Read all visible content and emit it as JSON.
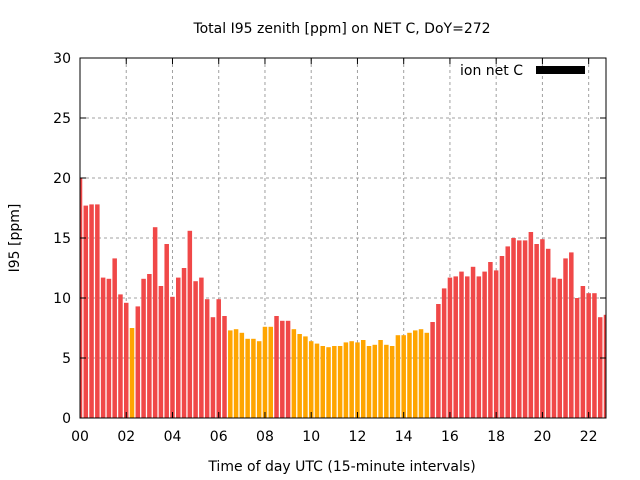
{
  "chart_data": {
    "type": "bar",
    "title": "Total I95 zenith [ppm] on NET C, DoY=272",
    "xlabel": "Time of day UTC (15-minute intervals)",
    "ylabel": "I95 [ppm]",
    "xlim": [
      0,
      22.75
    ],
    "ylim": [
      0,
      30
    ],
    "grid": true,
    "legend": {
      "label": "ion net C",
      "placement": "top-right",
      "color": "#000000"
    },
    "xticks": [
      0,
      2,
      4,
      6,
      8,
      10,
      12,
      14,
      16,
      18,
      20,
      22
    ],
    "xtick_labels": [
      "00",
      "02",
      "04",
      "06",
      "08",
      "10",
      "12",
      "14",
      "16",
      "18",
      "20",
      "22"
    ],
    "yticks": [
      0,
      5,
      10,
      15,
      20,
      25,
      30
    ],
    "ytick_labels": [
      "0",
      "5",
      "10",
      "15",
      "20",
      "25",
      "30"
    ],
    "interval_hours": 0.25,
    "threshold": 8,
    "colors": {
      "high": "#f04848",
      "low": "#ffa500"
    },
    "values": [
      20.0,
      17.7,
      17.8,
      17.8,
      11.7,
      11.6,
      13.3,
      10.3,
      9.6,
      7.5,
      9.3,
      11.6,
      12.0,
      15.9,
      11.0,
      14.5,
      10.1,
      11.7,
      12.5,
      15.6,
      11.4,
      11.7,
      9.9,
      8.4,
      9.9,
      8.5,
      7.3,
      7.4,
      7.1,
      6.6,
      6.6,
      6.4,
      7.6,
      7.6,
      8.5,
      8.1,
      8.1,
      7.4,
      7.0,
      6.8,
      6.4,
      6.2,
      6.0,
      5.9,
      6.0,
      6.0,
      6.3,
      6.4,
      6.3,
      6.5,
      6.0,
      6.1,
      6.5,
      6.1,
      6.0,
      6.9,
      6.9,
      7.1,
      7.3,
      7.4,
      7.1,
      8.0,
      9.5,
      10.8,
      11.7,
      11.8,
      12.2,
      11.8,
      12.6,
      11.8,
      12.2,
      13.0,
      12.3,
      13.5,
      14.3,
      15.0,
      14.8,
      14.8,
      15.5,
      14.5,
      14.9,
      14.1,
      11.7,
      11.6,
      13.3,
      13.8,
      10.0,
      11.0,
      10.4,
      10.4,
      8.4,
      8.6
    ]
  }
}
